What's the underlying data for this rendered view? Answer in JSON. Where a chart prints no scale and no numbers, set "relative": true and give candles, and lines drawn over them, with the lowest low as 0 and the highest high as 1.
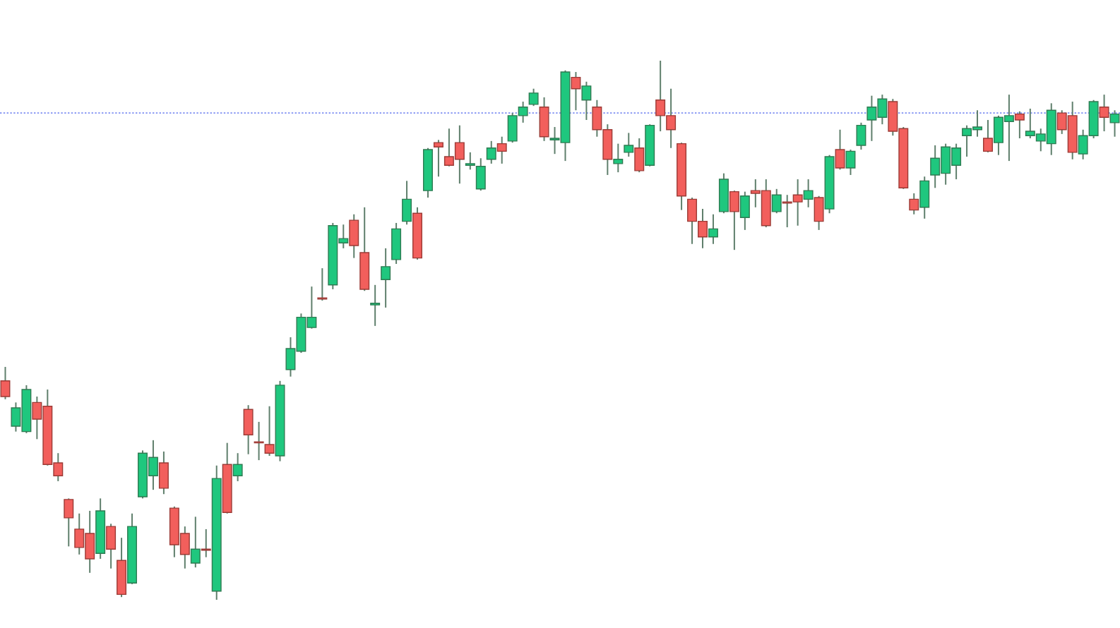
{
  "chart_data": {
    "type": "candlestick",
    "relative": true,
    "categories": [
      null,
      null,
      null,
      null,
      null,
      null,
      null,
      null,
      null,
      null,
      null,
      null,
      null,
      null,
      null,
      null,
      null,
      null,
      null,
      null,
      null,
      null,
      null,
      null,
      null,
      null,
      null,
      null,
      null,
      null,
      null,
      null,
      null,
      null,
      null,
      null,
      null,
      null,
      null,
      null,
      null,
      null,
      null,
      null,
      null,
      null,
      null,
      null,
      null,
      null,
      null,
      null,
      null,
      null,
      null,
      null,
      null,
      null,
      null,
      null,
      null,
      null,
      null,
      null,
      null,
      null,
      null,
      null,
      null,
      null,
      null,
      null,
      null,
      null,
      null,
      null,
      null,
      null,
      null,
      null,
      null,
      null,
      null,
      null,
      null,
      null,
      null,
      null,
      null,
      null,
      null,
      null,
      null,
      null,
      null,
      null,
      null,
      null,
      null,
      null,
      null,
      null,
      null,
      null,
      null,
      null
    ],
    "ohlc": [
      [
        0.406,
        0.432,
        0.372,
        0.377
      ],
      [
        0.322,
        0.366,
        0.312,
        0.356
      ],
      [
        0.312,
        0.398,
        0.309,
        0.39
      ],
      [
        0.366,
        0.377,
        0.298,
        0.335
      ],
      [
        0.359,
        0.39,
        0.249,
        0.251
      ],
      [
        0.254,
        0.272,
        0.22,
        0.23
      ],
      [
        0.186,
        0.188,
        0.099,
        0.152
      ],
      [
        0.131,
        0.16,
        0.084,
        0.097
      ],
      [
        0.123,
        0.165,
        0.05,
        0.076
      ],
      [
        0.086,
        0.188,
        0.076,
        0.165
      ],
      [
        0.136,
        0.141,
        0.058,
        0.094
      ],
      [
        0.073,
        0.115,
        0.005,
        0.01
      ],
      [
        0.031,
        0.16,
        0.029,
        0.136
      ],
      [
        0.191,
        0.277,
        0.188,
        0.272
      ],
      [
        0.23,
        0.296,
        0.204,
        0.264
      ],
      [
        0.254,
        0.275,
        0.196,
        0.207
      ],
      [
        0.17,
        0.173,
        0.079,
        0.102
      ],
      [
        0.123,
        0.136,
        0.058,
        0.084
      ],
      [
        0.068,
        0.154,
        0.06,
        0.094
      ],
      [
        0.094,
        0.131,
        0.079,
        0.092
      ],
      [
        0.016,
        0.249,
        0,
        0.225
      ],
      [
        0.251,
        0.291,
        0.16,
        0.162
      ],
      [
        0.23,
        0.272,
        0.22,
        0.251
      ],
      [
        0.353,
        0.361,
        0.27,
        0.306
      ],
      [
        0.293,
        0.33,
        0.259,
        0.291
      ],
      [
        0.288,
        0.359,
        0.267,
        0.272
      ],
      [
        0.267,
        0.406,
        0.257,
        0.398
      ],
      [
        0.427,
        0.487,
        0.414,
        0.466
      ],
      [
        0.461,
        0.531,
        0.458,
        0.524
      ],
      [
        0.505,
        0.581,
        0.503,
        0.524
      ],
      [
        0.56,
        0.615,
        0.555,
        0.558
      ],
      [
        0.584,
        0.699,
        0.576,
        0.694
      ],
      [
        0.662,
        0.696,
        0.652,
        0.67
      ],
      [
        0.704,
        0.715,
        0.634,
        0.657
      ],
      [
        0.644,
        0.728,
        0.573,
        0.576
      ],
      [
        0.547,
        0.584,
        0.508,
        0.55
      ],
      [
        0.594,
        0.652,
        0.542,
        0.618
      ],
      [
        0.631,
        0.699,
        0.623,
        0.688
      ],
      [
        0.702,
        0.777,
        0.696,
        0.743
      ],
      [
        0.717,
        0.728,
        0.631,
        0.634
      ],
      [
        0.759,
        0.838,
        0.746,
        0.835
      ],
      [
        0.848,
        0.853,
        0.785,
        0.84
      ],
      [
        0.822,
        0.874,
        0.804,
        0.806
      ],
      [
        0.848,
        0.88,
        0.772,
        0.817
      ],
      [
        0.806,
        0.83,
        0.798,
        0.809
      ],
      [
        0.762,
        0.819,
        0.759,
        0.804
      ],
      [
        0.817,
        0.851,
        0.809,
        0.838
      ],
      [
        0.846,
        0.859,
        0.809,
        0.832
      ],
      [
        0.851,
        0.903,
        0.848,
        0.898
      ],
      [
        0.898,
        0.924,
        0.885,
        0.914
      ],
      [
        0.919,
        0.948,
        0.916,
        0.94
      ],
      [
        0.914,
        0.932,
        0.851,
        0.859
      ],
      [
        0.853,
        0.877,
        0.827,
        0.856
      ],
      [
        0.848,
        0.982,
        0.814,
        0.979
      ],
      [
        0.969,
        0.979,
        0.908,
        0.948
      ],
      [
        0.927,
        0.961,
        0.89,
        0.953
      ],
      [
        0.914,
        0.927,
        0.859,
        0.872
      ],
      [
        0.872,
        0.882,
        0.788,
        0.817
      ],
      [
        0.809,
        0.846,
        0.793,
        0.817
      ],
      [
        0.83,
        0.866,
        0.822,
        0.843
      ],
      [
        0.838,
        0.856,
        0.793,
        0.796
      ],
      [
        0.806,
        0.882,
        0.804,
        0.88
      ],
      [
        0.927,
        1,
        0.869,
        0.898
      ],
      [
        0.898,
        0.948,
        0.838,
        0.872
      ],
      [
        0.846,
        0.848,
        0.723,
        0.749
      ],
      [
        0.743,
        0.746,
        0.66,
        0.702
      ],
      [
        0.702,
        0.725,
        0.652,
        0.673
      ],
      [
        0.673,
        0.715,
        0.66,
        0.688
      ],
      [
        0.72,
        0.791,
        0.717,
        0.78
      ],
      [
        0.757,
        0.759,
        0.649,
        0.72
      ],
      [
        0.709,
        0.757,
        0.686,
        0.749
      ],
      [
        0.759,
        0.78,
        0.728,
        0.754
      ],
      [
        0.759,
        0.78,
        0.691,
        0.694
      ],
      [
        0.72,
        0.762,
        0.717,
        0.751
      ],
      [
        0.738,
        0.751,
        0.691,
        0.736
      ],
      [
        0.751,
        0.78,
        0.694,
        0.738
      ],
      [
        0.743,
        0.78,
        0.728,
        0.759
      ],
      [
        0.746,
        0.749,
        0.686,
        0.702
      ],
      [
        0.725,
        0.825,
        0.717,
        0.822
      ],
      [
        0.835,
        0.872,
        0.798,
        0.801
      ],
      [
        0.801,
        0.835,
        0.788,
        0.832
      ],
      [
        0.843,
        0.885,
        0.835,
        0.88
      ],
      [
        0.89,
        0.935,
        0.851,
        0.914
      ],
      [
        0.895,
        0.937,
        0.882,
        0.929
      ],
      [
        0.924,
        0.929,
        0.861,
        0.869
      ],
      [
        0.874,
        0.877,
        0.762,
        0.764
      ],
      [
        0.743,
        0.754,
        0.715,
        0.723
      ],
      [
        0.728,
        0.785,
        0.707,
        0.777
      ],
      [
        0.788,
        0.843,
        0.764,
        0.819
      ],
      [
        0.791,
        0.846,
        0.77,
        0.84
      ],
      [
        0.806,
        0.846,
        0.78,
        0.838
      ],
      [
        0.861,
        0.88,
        0.822,
        0.874
      ],
      [
        0.872,
        0.908,
        0.859,
        0.877
      ],
      [
        0.856,
        0.89,
        0.83,
        0.832
      ],
      [
        0.848,
        0.898,
        0.825,
        0.895
      ],
      [
        0.887,
        0.937,
        0.814,
        0.898
      ],
      [
        0.901,
        0.906,
        0.856,
        0.89
      ],
      [
        0.861,
        0.911,
        0.856,
        0.869
      ],
      [
        0.851,
        0.874,
        0.832,
        0.864
      ],
      [
        0.846,
        0.921,
        0.825,
        0.908
      ],
      [
        0.903,
        0.908,
        0.864,
        0.872
      ],
      [
        0.898,
        0.924,
        0.817,
        0.83
      ],
      [
        0.827,
        0.872,
        0.817,
        0.861
      ],
      [
        0.861,
        0.927,
        0.856,
        0.924
      ],
      [
        0.914,
        0.937,
        0.869,
        0.895
      ],
      [
        0.885,
        0.908,
        0.859,
        0.901
      ]
    ],
    "ref_lines": [
      {
        "axis": "y",
        "value": 0.903,
        "color": "#7f8ff2",
        "line_style": "dotted"
      }
    ]
  }
}
